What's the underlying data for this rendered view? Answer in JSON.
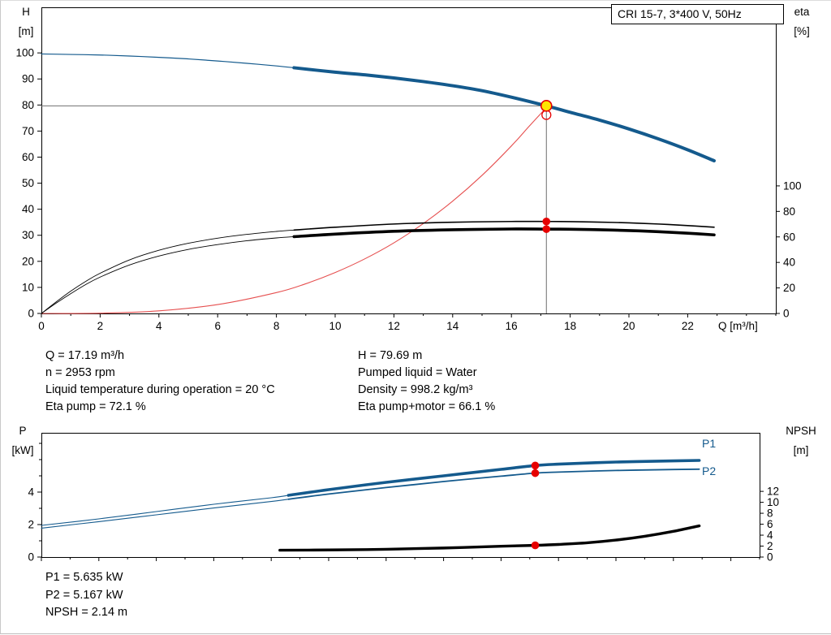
{
  "header": {
    "pump_type": "CRI 15-7, 3*400 V, 50Hz"
  },
  "axes_labels": {
    "qh_left": [
      "H",
      "[m]"
    ],
    "qh_right": [
      "eta",
      "[%]"
    ],
    "qh_x": "Q [m³/h]",
    "power_left": [
      "P",
      "[kW]"
    ],
    "power_right": [
      "NPSH",
      "[m]"
    ]
  },
  "curve_labels": {
    "p1": "P1",
    "p2": "P2"
  },
  "info_top": {
    "left": [
      "Q = 17.19 m³/h",
      "n = 2953 rpm",
      "Liquid temperature during operation = 20 °C",
      "Eta pump = 72.1 %"
    ],
    "right": [
      "H = 79.69 m",
      "Pumped liquid = Water",
      "Density = 998.2 kg/m³",
      "Eta pump+motor = 66.1 %"
    ]
  },
  "info_bottom": [
    "P1 = 5.635 kW",
    "P2 = 5.167 kW",
    "NPSH = 2.14 m"
  ],
  "operating_point": {
    "Q_m3h": 17.19,
    "H_m": 79.69,
    "n_rpm": 2953,
    "eta_pump_pct": 72.1,
    "eta_pump_motor_pct": 66.1,
    "P1_kW": 5.635,
    "P2_kW": 5.167,
    "NPSH_m": 2.14,
    "liquid": "Water",
    "temperature_C": 20,
    "density_kg_m3": 998.2
  },
  "colors": {
    "curve_blue": "#145a8d",
    "curve_black": "#000000",
    "red": "#e60000",
    "system_red": "#e65050",
    "duty_yellow": "#ffe400",
    "crosshair_gray": "#6f6f6f"
  },
  "chart_data": [
    {
      "id": "qh",
      "type": "line",
      "title": "CRI 15-7, 3*400 V, 50Hz",
      "x_axis": {
        "label": "Q [m³/h]",
        "min": 0,
        "max": 25,
        "ticks": [
          0,
          2,
          4,
          6,
          8,
          10,
          12,
          14,
          16,
          18,
          20,
          22
        ],
        "minor_step": 1,
        "labels": true
      },
      "y_left": {
        "label": "H [m]",
        "min": 0,
        "max": 117.5,
        "ticks": [
          0,
          10,
          20,
          30,
          40,
          50,
          60,
          70,
          80,
          90,
          100
        ],
        "labels": true
      },
      "y_right": {
        "label": "eta [%]",
        "min": 0,
        "max": 240,
        "ticks": [
          0,
          20,
          40,
          60,
          80,
          100
        ],
        "labels": true
      },
      "crosshair": {
        "x": 17.19,
        "y": 79.69
      },
      "series": [
        {
          "name": "system-curve",
          "axis": "left",
          "color": "#e65050",
          "width": 1.1,
          "points": [
            [
              0,
              0
            ],
            [
              2,
              0.1
            ],
            [
              4,
              1.0
            ],
            [
              6,
              3.4
            ],
            [
              8,
              8.0
            ],
            [
              9,
              11.4
            ],
            [
              10,
              15.7
            ],
            [
              11,
              20.9
            ],
            [
              12,
              27.1
            ],
            [
              13,
              34.5
            ],
            [
              14,
              43.1
            ],
            [
              15,
              53.0
            ],
            [
              16,
              64.3
            ],
            [
              16.6,
              71.8
            ],
            [
              17.19,
              79.0
            ]
          ]
        },
        {
          "name": "eta-pump-curve",
          "axis": "right",
          "color": "#000000",
          "width": 0.9,
          "width_op": 1.6,
          "split_x": 8.6,
          "points": [
            [
              0,
              0
            ],
            [
              0.5,
              9
            ],
            [
              1,
              17.5
            ],
            [
              1.5,
              25
            ],
            [
              2,
              31.5
            ],
            [
              3,
              42
            ],
            [
              4,
              49.5
            ],
            [
              5,
              55
            ],
            [
              6,
              59
            ],
            [
              7,
              62
            ],
            [
              8,
              64.3
            ],
            [
              8.6,
              65.4
            ],
            [
              10,
              67.6
            ],
            [
              12,
              70.1
            ],
            [
              14,
              71.5
            ],
            [
              16,
              72.1
            ],
            [
              17.19,
              72.1
            ],
            [
              18,
              72.0
            ],
            [
              19,
              71.6
            ],
            [
              20,
              71.0
            ],
            [
              21,
              70.1
            ],
            [
              22,
              68.9
            ],
            [
              22.9,
              67.6
            ]
          ]
        },
        {
          "name": "eta-pump-motor-curve",
          "axis": "right",
          "color": "#000000",
          "width": 0.9,
          "width_op": 3.6,
          "split_x": 8.6,
          "points": [
            [
              0,
              0
            ],
            [
              0.5,
              8
            ],
            [
              1,
              15.5
            ],
            [
              1.5,
              22.5
            ],
            [
              2,
              28.5
            ],
            [
              3,
              38
            ],
            [
              4,
              45
            ],
            [
              5,
              50.2
            ],
            [
              6,
              54
            ],
            [
              7,
              57
            ],
            [
              8,
              59.2
            ],
            [
              8.6,
              60.2
            ],
            [
              10,
              62.2
            ],
            [
              12,
              64.4
            ],
            [
              14,
              65.6
            ],
            [
              16,
              66.2
            ],
            [
              17.19,
              66.1
            ],
            [
              18,
              66.0
            ],
            [
              19,
              65.6
            ],
            [
              20,
              65.0
            ],
            [
              21,
              64.1
            ],
            [
              22,
              62.9
            ],
            [
              22.9,
              61.6
            ]
          ]
        },
        {
          "name": "head-curve",
          "axis": "left",
          "color": "#145a8d",
          "width": 1.2,
          "width_op": 4,
          "split_x": 8.6,
          "points": [
            [
              0,
              99.6
            ],
            [
              1,
              99.4
            ],
            [
              2,
              99.2
            ],
            [
              3,
              98.8
            ],
            [
              4,
              98.3
            ],
            [
              5,
              97.7
            ],
            [
              6,
              96.9
            ],
            [
              7,
              96.0
            ],
            [
              8,
              95.0
            ],
            [
              8.6,
              94.3
            ],
            [
              10,
              92.6
            ],
            [
              11,
              91.6
            ],
            [
              12,
              90.4
            ],
            [
              13,
              89.0
            ],
            [
              14,
              87.4
            ],
            [
              15,
              85.5
            ],
            [
              16,
              83.0
            ],
            [
              17.19,
              79.69
            ],
            [
              18,
              77.2
            ],
            [
              19,
              74.2
            ],
            [
              20,
              70.8
            ],
            [
              21,
              67.0
            ],
            [
              22,
              62.8
            ],
            [
              22.9,
              58.6
            ]
          ]
        }
      ],
      "markers": [
        {
          "name": "duty-point-open",
          "axis": "left",
          "x": 17.19,
          "y": 76.2,
          "r": 5.5,
          "fill": "none",
          "stroke": "#e60000",
          "sw": 1.3
        },
        {
          "name": "duty-point",
          "axis": "left",
          "x": 17.19,
          "y": 79.69,
          "r": 6.5,
          "fill": "#ffe400",
          "stroke": "#e60000",
          "sw": 1.6
        },
        {
          "name": "eta-pump-dot",
          "axis": "right",
          "x": 17.19,
          "y": 72.1,
          "r": 4.8,
          "fill": "#e60000"
        },
        {
          "name": "eta-pump-motor-dot",
          "axis": "right",
          "x": 17.19,
          "y": 66.1,
          "r": 4.8,
          "fill": "#e60000"
        }
      ]
    },
    {
      "id": "power",
      "type": "line",
      "x_axis": {
        "label": "Q [m³/h]",
        "min": 0,
        "max": 25,
        "ticks": [
          0,
          2,
          4,
          6,
          8,
          10,
          12,
          14,
          16,
          18,
          20,
          22,
          24
        ],
        "minor_step": 1,
        "labels": false
      },
      "y_left": {
        "label": "P [kW]",
        "min": 0,
        "max": 7.65,
        "ticks": [
          0,
          2,
          4
        ],
        "minor_step": 1,
        "labels": true
      },
      "y_right": {
        "label": "NPSH [m]",
        "min": 0,
        "max": 22.7,
        "ticks": [
          0,
          2,
          4,
          6,
          8,
          10,
          12
        ],
        "labels": true
      },
      "series": [
        {
          "name": "p1-curve",
          "axis": "left",
          "color": "#145a8d",
          "width": 1.1,
          "width_op": 3.6,
          "split_x": 8.6,
          "points": [
            [
              0,
              1.95
            ],
            [
              2,
              2.35
            ],
            [
              4,
              2.8
            ],
            [
              6,
              3.25
            ],
            [
              8,
              3.65
            ],
            [
              8.6,
              3.8
            ],
            [
              10,
              4.15
            ],
            [
              12,
              4.6
            ],
            [
              14,
              5.0
            ],
            [
              16,
              5.4
            ],
            [
              17.19,
              5.635
            ],
            [
              18,
              5.72
            ],
            [
              20,
              5.85
            ],
            [
              22,
              5.92
            ],
            [
              22.9,
              5.95
            ]
          ]
        },
        {
          "name": "p2-curve",
          "axis": "left",
          "color": "#145a8d",
          "width": 1.1,
          "width_op": 1.8,
          "split_x": 8.6,
          "points": [
            [
              0,
              1.78
            ],
            [
              2,
              2.18
            ],
            [
              4,
              2.6
            ],
            [
              6,
              3.02
            ],
            [
              8,
              3.42
            ],
            [
              8.6,
              3.56
            ],
            [
              10,
              3.88
            ],
            [
              12,
              4.28
            ],
            [
              14,
              4.65
            ],
            [
              16,
              4.98
            ],
            [
              17.19,
              5.167
            ],
            [
              18,
              5.23
            ],
            [
              20,
              5.33
            ],
            [
              22,
              5.39
            ],
            [
              22.9,
              5.41
            ]
          ]
        },
        {
          "name": "npsh-curve",
          "axis": "right",
          "color": "#000000",
          "width": 3.4,
          "points": [
            [
              8.3,
              1.25
            ],
            [
              10,
              1.3
            ],
            [
              12,
              1.42
            ],
            [
              14,
              1.65
            ],
            [
              16,
              1.98
            ],
            [
              17.19,
              2.14
            ],
            [
              18,
              2.3
            ],
            [
              19,
              2.6
            ],
            [
              20,
              3.1
            ],
            [
              21,
              3.8
            ],
            [
              22,
              4.7
            ],
            [
              22.9,
              5.7
            ]
          ]
        }
      ],
      "markers": [
        {
          "name": "p1-dot",
          "axis": "left",
          "x": 17.19,
          "y": 5.635,
          "r": 4.8,
          "fill": "#e60000"
        },
        {
          "name": "p2-dot",
          "axis": "left",
          "x": 17.19,
          "y": 5.167,
          "r": 4.8,
          "fill": "#e60000"
        },
        {
          "name": "npsh-dot",
          "axis": "right",
          "x": 17.19,
          "y": 2.14,
          "r": 4.8,
          "fill": "#e60000"
        }
      ]
    }
  ]
}
